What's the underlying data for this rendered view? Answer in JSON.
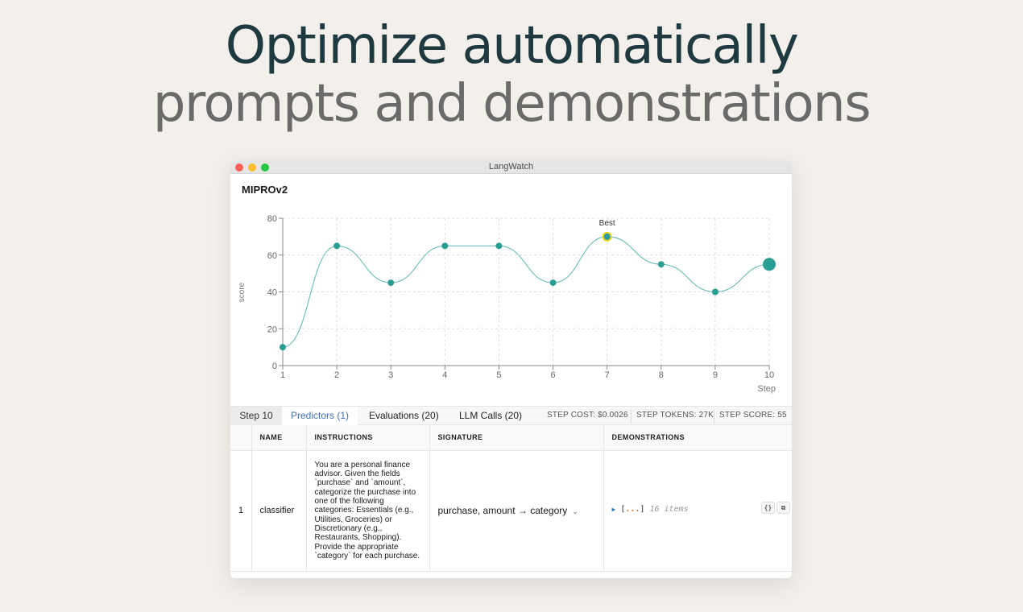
{
  "hero": {
    "line1": "Optimize automatically",
    "line2": "prompts and demonstrations"
  },
  "window": {
    "title": "LangWatch",
    "page_title": "MIPROv2"
  },
  "chart_data": {
    "type": "line",
    "x": [
      1,
      2,
      3,
      4,
      5,
      6,
      7,
      8,
      9,
      10
    ],
    "series": [
      {
        "values": [
          10,
          65,
          45,
          65,
          65,
          45,
          70,
          55,
          40,
          55
        ]
      }
    ],
    "xlabel": "Step",
    "ylabel": "score",
    "xlim": [
      1,
      10
    ],
    "ylim": [
      0,
      80
    ],
    "yticks": [
      0,
      20,
      40,
      60,
      80
    ],
    "grid": true,
    "annotations": [
      {
        "x": 7,
        "y": 70,
        "text": "Best"
      }
    ],
    "highlight_current_step": 10,
    "colors": {
      "line": "#5cb8b2",
      "point": "#2a9d94",
      "best_ring": "#f2d21c"
    }
  },
  "tabs": {
    "step": "Step 10",
    "predictors": "Predictors (1)",
    "evaluations": "Evaluations (20)",
    "llm_calls": "LLM Calls (20)"
  },
  "stats": {
    "cost": "STEP COST: $0.0026",
    "tokens": "STEP TOKENS: 27K",
    "score": "STEP SCORE: 55"
  },
  "table": {
    "headers": [
      "",
      "NAME",
      "INSTRUCTIONS",
      "SIGNATURE",
      "DEMONSTRATIONS"
    ],
    "rows": [
      {
        "index": "1",
        "name": "classifier",
        "instructions": "You are a personal finance advisor. Given the fields `purchase` and `amount`, categorize the purchase into one of the following categories: Essentials (e.g., Utilities, Groceries) or Discretionary (e.g., Restaurants, Shopping). Provide the appropriate `category` for each purchase.",
        "signature": "purchase, amount → category",
        "demo_open": "[",
        "demo_dots": "...",
        "demo_close": "]",
        "demo_count": "16 items"
      }
    ]
  },
  "buttons": {
    "json": "{}",
    "copy": "⧉"
  }
}
